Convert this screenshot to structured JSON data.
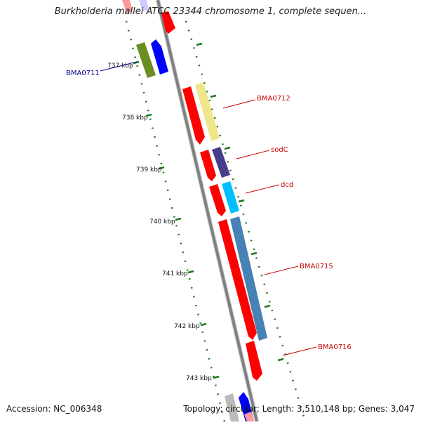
{
  "title": "Burkholderia mallei ATCC 23344 chromosome 1, complete sequen...",
  "accession": "Accession: NC_006348",
  "summary": "Topology: circular; Length: 3,510,148 bp; Genes: 3,047",
  "ticks": [
    "737 kbp",
    "738 kbp",
    "739 kbp",
    "740 kbp",
    "741 kbp",
    "742 kbp",
    "743 kbp"
  ],
  "genes": [
    {
      "name": "BMA0711",
      "color": "#00008b"
    },
    {
      "name": "BMA0712",
      "color": "#cc0000"
    },
    {
      "name": "sodC",
      "color": "#cc0000"
    },
    {
      "name": "dcd",
      "color": "#cc0000"
    },
    {
      "name": "BMA0715",
      "color": "#cc0000"
    },
    {
      "name": "BMA0716",
      "color": "#cc0000"
    }
  ],
  "colors": {
    "backbone": "#808080",
    "tick_dots": "#1a7a1a",
    "cds_red": "#ff0000",
    "cds_blue": "#0000ff",
    "cds_olive": "#6b8e23",
    "cds_khaki": "#f0e68c",
    "cds_purple": "#483d8b",
    "cds_cyan": "#00bfff",
    "cds_steelblue": "#4682b4",
    "cds_gray": "#bbbbbb"
  }
}
